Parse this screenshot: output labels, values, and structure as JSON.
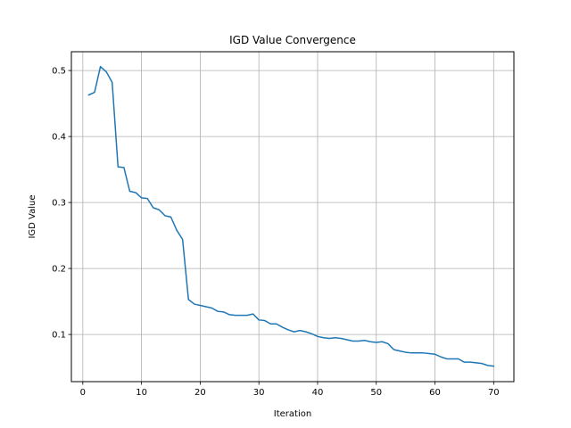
{
  "chart_data": {
    "type": "line",
    "title": "IGD Value Convergence",
    "xlabel": "Iteration",
    "ylabel": "IGD Value",
    "xlim": [
      -1.95,
      73.45
    ],
    "ylim": [
      0.0285,
      0.5285
    ],
    "x_ticks": [
      0,
      10,
      20,
      30,
      40,
      50,
      60,
      70
    ],
    "y_ticks": [
      0.1,
      0.2,
      0.3,
      0.4,
      0.5
    ],
    "grid": true,
    "line_color": "#1f77b4",
    "series": [
      {
        "x": [
          1,
          2,
          3,
          4,
          5,
          6,
          7,
          8,
          9,
          10,
          11,
          12,
          13,
          14,
          15,
          16,
          17,
          18,
          19,
          20,
          21,
          22,
          23,
          24,
          25,
          26,
          27,
          28,
          29,
          30,
          31,
          32,
          33,
          34,
          35,
          36,
          37,
          38,
          39,
          40,
          41,
          42,
          43,
          44,
          45,
          46,
          47,
          48,
          49,
          50,
          51,
          52,
          53,
          54,
          55,
          56,
          57,
          58,
          59,
          60,
          61,
          62,
          63,
          64,
          65,
          66,
          67,
          68,
          69,
          70
        ],
        "y": [
          0.463,
          0.467,
          0.506,
          0.498,
          0.482,
          0.354,
          0.353,
          0.317,
          0.315,
          0.307,
          0.306,
          0.292,
          0.289,
          0.28,
          0.278,
          0.258,
          0.244,
          0.153,
          0.146,
          0.144,
          0.142,
          0.14,
          0.135,
          0.134,
          0.13,
          0.129,
          0.129,
          0.129,
          0.131,
          0.122,
          0.121,
          0.116,
          0.116,
          0.111,
          0.107,
          0.104,
          0.106,
          0.104,
          0.101,
          0.097,
          0.095,
          0.094,
          0.095,
          0.094,
          0.092,
          0.09,
          0.09,
          0.091,
          0.089,
          0.088,
          0.089,
          0.086,
          0.077,
          0.075,
          0.073,
          0.072,
          0.072,
          0.072,
          0.071,
          0.07,
          0.066,
          0.063,
          0.063,
          0.063,
          0.058,
          0.058,
          0.057,
          0.056,
          0.053,
          0.052
        ]
      }
    ]
  }
}
